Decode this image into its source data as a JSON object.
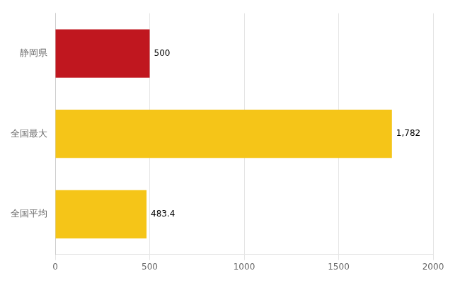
{
  "chart_data": {
    "type": "bar",
    "orientation": "horizontal",
    "categories": [
      "全国平均",
      "全国最大",
      "静岡県"
    ],
    "values": [
      483.4,
      1782,
      500
    ],
    "value_labels": [
      "483.4",
      "1,782",
      "500"
    ],
    "colors": [
      "#F5C518",
      "#F5C518",
      "#C0171F"
    ],
    "xlim": [
      0,
      2000
    ],
    "xticks": [
      0,
      500,
      1000,
      1500,
      2000
    ],
    "grid": true,
    "data_labels": true
  }
}
